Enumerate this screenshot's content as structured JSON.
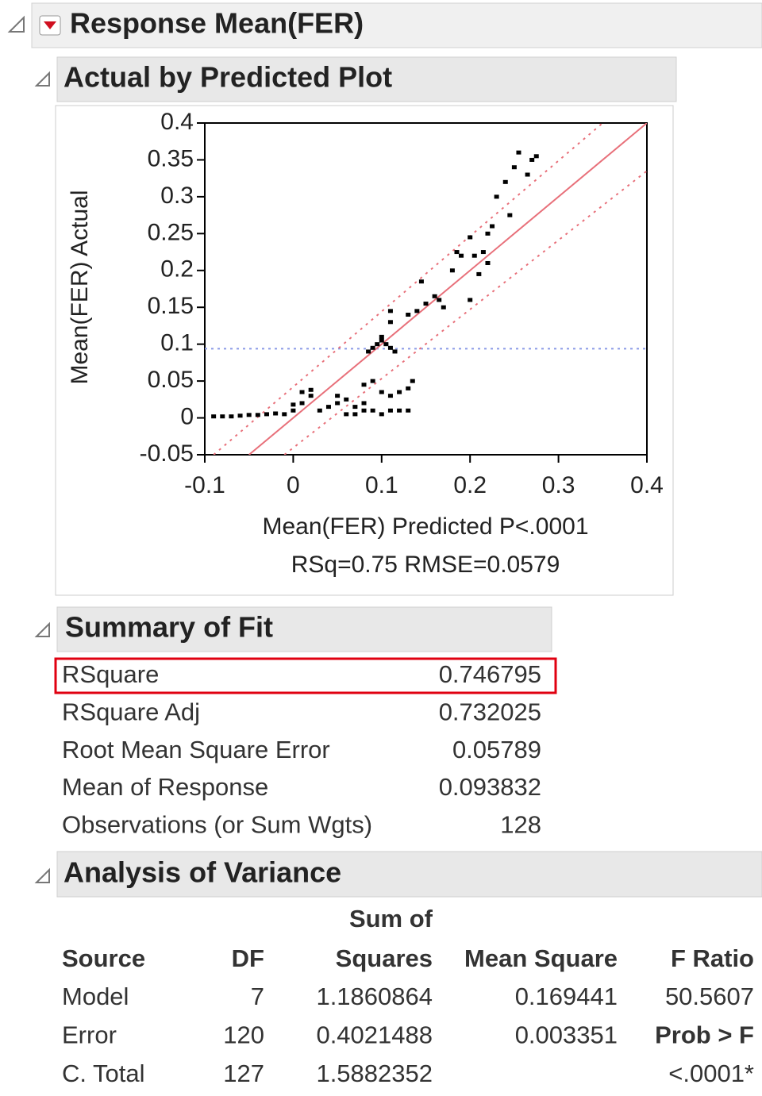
{
  "header": {
    "title": "Response Mean(FER)"
  },
  "chart_data": {
    "type": "scatter",
    "title": "Actual by Predicted Plot",
    "y_label": "Mean(FER) Actual",
    "x_label": "Mean(FER) Predicted P<.0001",
    "x_label2": "RSq=0.75 RMSE=0.0579",
    "xlim": [
      -0.1,
      0.4
    ],
    "ylim": [
      -0.05,
      0.4
    ],
    "xticks": [
      -0.1,
      0,
      0.1,
      0.2,
      0.3,
      0.4
    ],
    "yticks": [
      0.4,
      0.35,
      0.3,
      0.25,
      0.2,
      0.15,
      0.1,
      0.05,
      0,
      -0.05
    ],
    "color": "#000000",
    "x": [
      -0.09,
      -0.08,
      -0.07,
      -0.06,
      -0.05,
      -0.04,
      -0.03,
      -0.02,
      -0.01,
      0,
      0,
      0.01,
      0.01,
      0.02,
      0.02,
      0.03,
      0.04,
      0.05,
      0.05,
      0.06,
      0.06,
      0.07,
      0.07,
      0.08,
      0.08,
      0.08,
      0.09,
      0.09,
      0.1,
      0.1,
      0.11,
      0.11,
      0.12,
      0.12,
      0.13,
      0.13,
      0.135,
      0.085,
      0.09,
      0.095,
      0.1,
      0.105,
      0.11,
      0.1,
      0.11,
      0.11,
      0.115,
      0.13,
      0.14,
      0.145,
      0.15,
      0.16,
      0.165,
      0.17,
      0.18,
      0.185,
      0.19,
      0.2,
      0.2,
      0.205,
      0.21,
      0.215,
      0.22,
      0.22,
      0.225,
      0.23,
      0.24,
      0.245,
      0.25,
      0.255,
      0.265,
      0.27,
      0.275
    ],
    "values": [
      0.002,
      0.002,
      0.002,
      0.003,
      0.004,
      0.004,
      0.005,
      0.006,
      0.005,
      0.01,
      0.018,
      0.02,
      0.035,
      0.038,
      0.03,
      0.01,
      0.015,
      0.02,
      0.03,
      0.005,
      0.025,
      0.005,
      0.015,
      0.01,
      0.02,
      0.045,
      0.01,
      0.05,
      0.005,
      0.035,
      0.03,
      0.01,
      0.035,
      0.01,
      0.04,
      0.01,
      0.05,
      0.09,
      0.095,
      0.1,
      0.105,
      0.1,
      0.095,
      0.11,
      0.13,
      0.145,
      0.09,
      0.14,
      0.145,
      0.185,
      0.155,
      0.165,
      0.16,
      0.15,
      0.2,
      0.225,
      0.22,
      0.16,
      0.245,
      0.22,
      0.195,
      0.225,
      0.21,
      0.25,
      0.26,
      0.3,
      0.32,
      0.275,
      0.34,
      0.36,
      0.33,
      0.35,
      0.355
    ],
    "fit_line": {
      "x": [
        -0.05,
        0.4
      ],
      "values": [
        -0.05,
        0.4
      ],
      "color": "#e8707a"
    },
    "upper_band": {
      "x": [
        -0.09,
        0.35
      ],
      "values": [
        -0.05,
        0.4
      ],
      "color": "#e8707a"
    },
    "lower_band": {
      "x": [
        -0.01,
        0.4
      ],
      "values": [
        -0.05,
        0.335
      ],
      "color": "#e8707a"
    },
    "mean_line": {
      "value": 0.093832,
      "color": "#8a9ae6"
    }
  },
  "summary": {
    "title": "Summary of Fit",
    "rows": [
      [
        "RSquare",
        "0.746795"
      ],
      [
        "RSquare Adj",
        "0.732025"
      ],
      [
        "Root Mean Square Error",
        "0.05789"
      ],
      [
        "Mean of Response",
        "0.093832"
      ],
      [
        "Observations (or Sum Wgts)",
        "128"
      ]
    ]
  },
  "anova": {
    "title": "Analysis of Variance",
    "columns": [
      "Source",
      "DF",
      "Sum of",
      "Squares",
      "Mean Square",
      "F Ratio"
    ],
    "rows": [
      [
        "Model",
        "7",
        "1.1860864",
        "0.169441"
      ],
      [
        "Error",
        "120",
        "0.4021488",
        "0.003351"
      ],
      [
        "C. Total",
        "127",
        "1.5882352"
      ]
    ],
    "f_column": [
      "50.5607",
      "Prob > F",
      "<.0001*"
    ]
  }
}
